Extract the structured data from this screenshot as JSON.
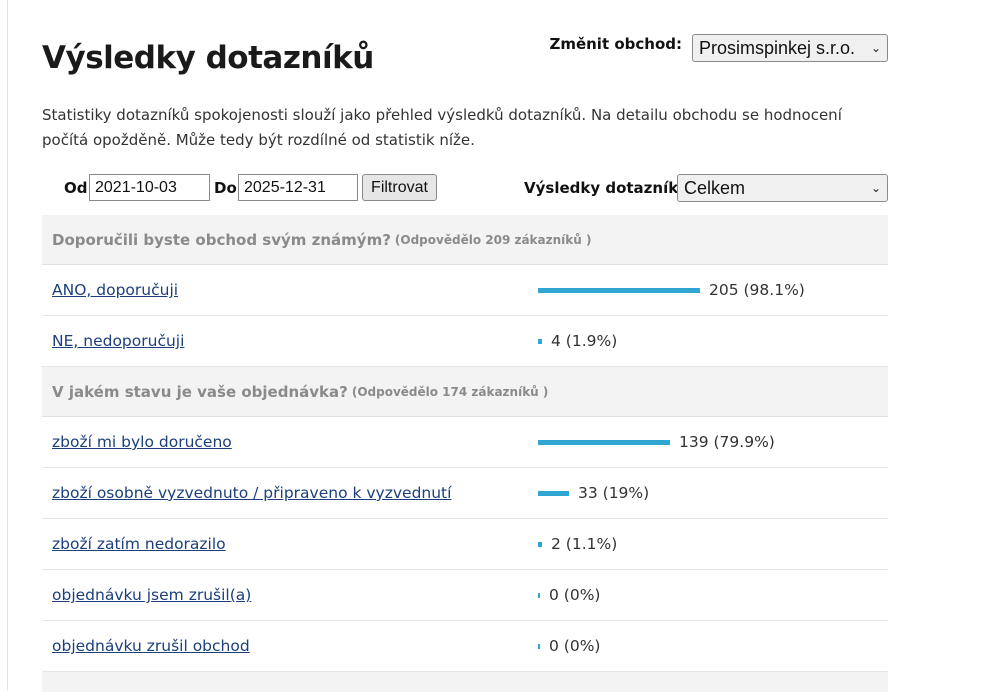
{
  "page": {
    "title": "Výsledky dotazníků",
    "intro": "Statistiky dotazníků spokojenosti slouží jako přehled výsledků dotazníků. Na detailu obchodu se hodnocení počítá opožděně. Může tedy být rozdílné od statistik níže."
  },
  "shop_switch": {
    "label": "Změnit obchod:",
    "selected": "Prosimspinkej s.r.o."
  },
  "filters": {
    "from_label": "Od",
    "from_value": "2021-10-03",
    "to_label": "Do",
    "to_value": "2025-12-31",
    "filter_button": "Filtrovat",
    "results_label": "Výsledky dotazníků:",
    "results_selected": "Celkem"
  },
  "questions": [
    {
      "question": "Doporučili byste obchod svým známým?",
      "count_text": "(Odpovědělo 209 zákazníků )",
      "answers": [
        {
          "label": "ANO, doporučuji",
          "result": "205 (98.1%)",
          "percent": 98.1
        },
        {
          "label": "NE, nedoporučuji",
          "result": "4 (1.9%)",
          "percent": 1.9
        }
      ]
    },
    {
      "question": "V jakém stavu je vaše objednávka?",
      "count_text": "(Odpovědělo 174 zákazníků )",
      "answers": [
        {
          "label": "zboží mi bylo doručeno",
          "result": "139 (79.9%)",
          "percent": 79.9
        },
        {
          "label": "zboží osobně vyzvednuto / připraveno k vyzvednutí",
          "result": "33 (19%)",
          "percent": 19
        },
        {
          "label": "zboží zatím nedorazilo",
          "result": "2 (1.1%)",
          "percent": 1.1
        },
        {
          "label": "objednávku jsem zrušil(a)",
          "result": "0 (0%)",
          "percent": 0
        },
        {
          "label": "objednávku zrušil obchod",
          "result": "0 (0%)",
          "percent": 0
        }
      ]
    }
  ],
  "colors": {
    "bar": "#2ea6d1",
    "link": "#1c3f7c",
    "question_bg": "#f3f3f3"
  }
}
